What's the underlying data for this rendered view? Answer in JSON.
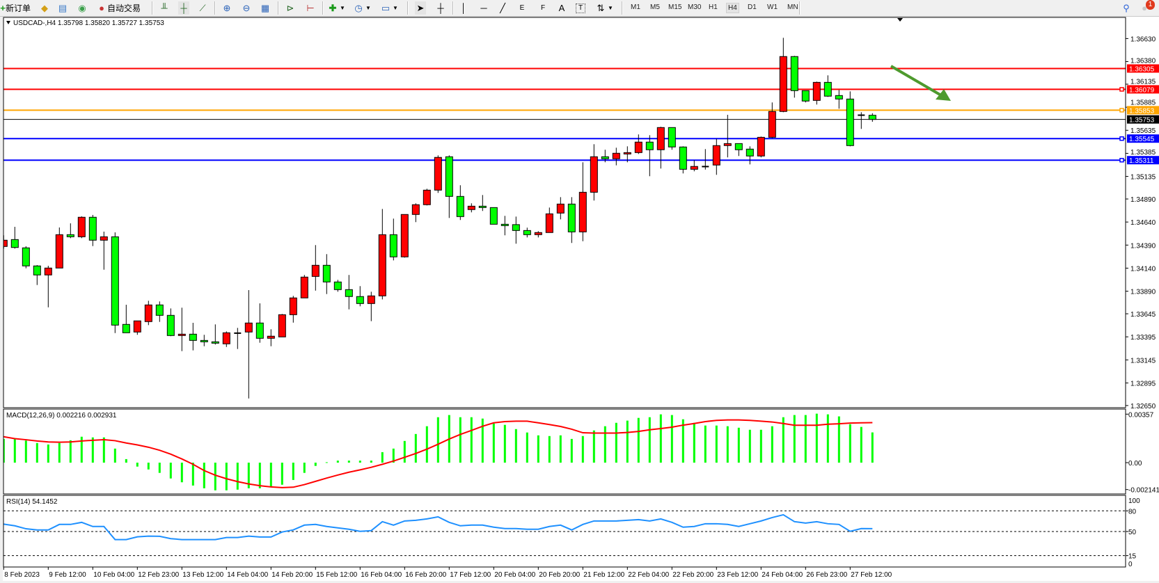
{
  "toolbar": {
    "new_order": "新订单",
    "auto_trading": "自动交易",
    "timeframes": [
      "M1",
      "M5",
      "M15",
      "M30",
      "H1",
      "H4",
      "D1",
      "W1",
      "MN"
    ],
    "active_timeframe": "H4",
    "notification_count": "1",
    "tool_labels": {
      "fib_expansion": "E",
      "fib_fan": "F",
      "text": "A",
      "text_label": "T"
    }
  },
  "chart": {
    "header": "USDCAD-,H4  1.35798 1.35820 1.35727 1.35753",
    "macd_label": "MACD(12,26,9) 0.002216 0.002931",
    "rsi_label": "RSI(14) 54.1452",
    "annotation_arrow_color": "#4e9a2e",
    "up_color": "#ff0000",
    "down_color": "#00ff00"
  },
  "chart_data": [
    {
      "type": "candlestick",
      "symbol": "USDCAD-",
      "timeframe": "H4",
      "ylim": [
        1.3265,
        1.3663
      ],
      "y_ticks": [
        "1.36630",
        "1.36380",
        "1.36135",
        "1.35885",
        "1.35635",
        "1.35385",
        "1.35135",
        "1.34890",
        "1.34640",
        "1.34390",
        "1.34140",
        "1.33890",
        "1.33645",
        "1.33395",
        "1.33145",
        "1.32895",
        "1.32650"
      ],
      "x_tick_labels": [
        "8 Feb 2023",
        "9 Feb 12:00",
        "10 Feb 04:00",
        "12 Feb 23:00",
        "13 Feb 12:00",
        "14 Feb 04:00",
        "14 Feb 20:00",
        "15 Feb 12:00",
        "16 Feb 04:00",
        "16 Feb 20:00",
        "17 Feb 12:00",
        "20 Feb 04:00",
        "20 Feb 20:00",
        "21 Feb 12:00",
        "22 Feb 04:00",
        "22 Feb 20:00",
        "23 Feb 12:00",
        "24 Feb 04:00",
        "26 Feb 23:00",
        "27 Feb 12:00"
      ],
      "ohlc": [
        [
          1.34375,
          1.34496,
          1.34352,
          1.34443
        ],
        [
          1.3445,
          1.34588,
          1.34352,
          1.34364
        ],
        [
          1.3436,
          1.34377,
          1.34138,
          1.34164
        ],
        [
          1.34164,
          1.34173,
          1.33957,
          1.34066
        ],
        [
          1.34066,
          1.34166,
          1.33715,
          1.34141
        ],
        [
          1.34141,
          1.34581,
          1.34141,
          1.34503
        ],
        [
          1.34503,
          1.34626,
          1.34465,
          1.3448
        ],
        [
          1.3448,
          1.34702,
          1.34465,
          1.34692
        ],
        [
          1.34692,
          1.34717,
          1.34379,
          1.34443
        ],
        [
          1.34443,
          1.34536,
          1.34123,
          1.3448
        ],
        [
          1.3448,
          1.34528,
          1.33436,
          1.33522
        ],
        [
          1.3353,
          1.33743,
          1.33439,
          1.33439
        ],
        [
          1.33447,
          1.33568,
          1.33417,
          1.33568
        ],
        [
          1.3356,
          1.33786,
          1.33522,
          1.33741
        ],
        [
          1.33741,
          1.33779,
          1.33557,
          1.33628
        ],
        [
          1.33628,
          1.33703,
          1.33402,
          1.33409
        ],
        [
          1.33409,
          1.33711,
          1.3324,
          1.33424
        ],
        [
          1.33424,
          1.33547,
          1.33248,
          1.33356
        ],
        [
          1.33356,
          1.33417,
          1.33293,
          1.33341
        ],
        [
          1.33341,
          1.3353,
          1.33311,
          1.33326
        ],
        [
          1.33319,
          1.33454,
          1.33285,
          1.33439
        ],
        [
          1.33436,
          1.33492,
          1.33263,
          1.33434
        ],
        [
          1.33447,
          1.33902,
          1.32727,
          1.33545
        ],
        [
          1.33545,
          1.33758,
          1.33331,
          1.33379
        ],
        [
          1.33379,
          1.33477,
          1.33293,
          1.33402
        ],
        [
          1.33394,
          1.33643,
          1.33394,
          1.33635
        ],
        [
          1.33635,
          1.33839,
          1.33549,
          1.33817
        ],
        [
          1.33817,
          1.34066,
          1.33817,
          1.34043
        ],
        [
          1.3405,
          1.3439,
          1.33896,
          1.34171
        ],
        [
          1.34171,
          1.34292,
          1.33859,
          1.3399
        ],
        [
          1.3399,
          1.34013,
          1.33884,
          1.33907
        ],
        [
          1.33907,
          1.34066,
          1.33693,
          1.33832
        ],
        [
          1.33832,
          1.33945,
          1.33726,
          1.33756
        ],
        [
          1.33756,
          1.33884,
          1.33565,
          1.33839
        ],
        [
          1.33839,
          1.34782,
          1.33801,
          1.34503
        ],
        [
          1.34503,
          1.34677,
          1.34224,
          1.34262
        ],
        [
          1.34262,
          1.34722,
          1.34254,
          1.34722
        ],
        [
          1.34722,
          1.34843,
          1.34639,
          1.34828
        ],
        [
          1.34828,
          1.35001,
          1.3482,
          1.34986
        ],
        [
          1.34986,
          1.35363,
          1.34956,
          1.35341
        ],
        [
          1.35348,
          1.35363,
          1.34684,
          1.34918
        ],
        [
          1.34918,
          1.35039,
          1.34662,
          1.34699
        ],
        [
          1.34775,
          1.34843,
          1.34745,
          1.34812
        ],
        [
          1.34812,
          1.34933,
          1.3476,
          1.34797
        ],
        [
          1.34797,
          1.34797,
          1.34616,
          1.34616
        ],
        [
          1.34616,
          1.34707,
          1.34496,
          1.34612
        ],
        [
          1.34612,
          1.34699,
          1.34405,
          1.34548
        ],
        [
          1.34548,
          1.34579,
          1.34473,
          1.34503
        ],
        [
          1.34503,
          1.34541,
          1.34473,
          1.34526
        ],
        [
          1.34526,
          1.34797,
          1.34526,
          1.34729
        ],
        [
          1.34737,
          1.3491,
          1.34669,
          1.34835
        ],
        [
          1.34835,
          1.3491,
          1.34413,
          1.34533
        ],
        [
          1.34533,
          1.35288,
          1.34432,
          1.34963
        ],
        [
          1.34963,
          1.35484,
          1.34873,
          1.35348
        ],
        [
          1.35348,
          1.35424,
          1.35288,
          1.35326
        ],
        [
          1.35326,
          1.35446,
          1.35255,
          1.35386
        ],
        [
          1.35378,
          1.35461,
          1.35288,
          1.35393
        ],
        [
          1.35393,
          1.3559,
          1.35378,
          1.35507
        ],
        [
          1.35507,
          1.35582,
          1.35137,
          1.35424
        ],
        [
          1.35424,
          1.35673,
          1.3522,
          1.35665
        ],
        [
          1.35665,
          1.35665,
          1.35424,
          1.35454
        ],
        [
          1.35454,
          1.35461,
          1.35167,
          1.35212
        ],
        [
          1.35212,
          1.3531,
          1.3519,
          1.35243
        ],
        [
          1.35243,
          1.35431,
          1.35209,
          1.3524
        ],
        [
          1.35258,
          1.35544,
          1.35152,
          1.35469
        ],
        [
          1.35469,
          1.35803,
          1.35341,
          1.35491
        ],
        [
          1.35491,
          1.35491,
          1.35356,
          1.35424
        ],
        [
          1.35431,
          1.35461,
          1.35265,
          1.35356
        ],
        [
          1.35356,
          1.35567,
          1.35341,
          1.35559
        ],
        [
          1.35559,
          1.35937,
          1.35551,
          1.35839
        ],
        [
          1.35839,
          1.36638,
          1.35831,
          1.36435
        ],
        [
          1.36435,
          1.36442,
          1.35989,
          1.36065
        ],
        [
          1.36065,
          1.36065,
          1.35937,
          1.35952
        ],
        [
          1.35959,
          1.36163,
          1.35914,
          1.36155
        ],
        [
          1.36155,
          1.36231,
          1.35997,
          1.36005
        ],
        [
          1.36012,
          1.36072,
          1.35869,
          1.35974
        ],
        [
          1.35974,
          1.36057,
          1.35461,
          1.35469
        ],
        [
          1.358,
          1.35831,
          1.3565,
          1.35798
        ],
        [
          1.35798,
          1.3582,
          1.35727,
          1.35753
        ]
      ],
      "current_price": {
        "value": "1.35753",
        "color": "#000000"
      },
      "horizontal_levels": [
        {
          "value": "1.36305",
          "color": "#ff0000"
        },
        {
          "value": "1.36079",
          "color": "#ff0000"
        },
        {
          "value": "1.35853",
          "color": "#ffa500"
        },
        {
          "value": "1.35545",
          "color": "#0000ff"
        },
        {
          "value": "1.35311",
          "color": "#0000ff"
        }
      ],
      "annotation": "down-arrow"
    },
    {
      "type": "bar",
      "indicator": "MACD(12,26,9)",
      "ylim": [
        -0.002141,
        0.00357
      ],
      "y_ticks": [
        "0.00357",
        "0.00",
        "-0.002141"
      ],
      "series": [
        {
          "name": "MACD",
          "type": "bar",
          "color": "#00ff00",
          "values": [
            0.00174,
            0.00174,
            0.00162,
            0.00144,
            0.00133,
            0.00144,
            0.00164,
            0.0019,
            0.00185,
            0.00185,
            0.00103,
            0.00026,
            -0.00029,
            -0.0005,
            -0.00075,
            -0.00116,
            -0.00144,
            -0.00168,
            -0.00188,
            -0.00203,
            -0.00203,
            -0.00198,
            -0.00188,
            -0.00188,
            -0.00178,
            -0.00162,
            -0.00127,
            -0.00075,
            -0.00024,
            3e-05,
            0.00015,
            0.00015,
            0.00015,
            0.00015,
            0.00077,
            0.00103,
            0.00159,
            0.0021,
            0.00267,
            0.00333,
            0.00349,
            0.00333,
            0.00333,
            0.00323,
            0.00287,
            0.00277,
            0.00246,
            0.00221,
            0.002,
            0.00195,
            0.002,
            0.00174,
            0.00195,
            0.00236,
            0.00267,
            0.00292,
            0.00308,
            0.00328,
            0.00333,
            0.00354,
            0.00349,
            0.00318,
            0.00292,
            0.00272,
            0.00272,
            0.00267,
            0.00256,
            0.00241,
            0.00241,
            0.00267,
            0.00333,
            0.00349,
            0.00349,
            0.00359,
            0.00354,
            0.00339,
            0.00282,
            0.00262,
            0.002216
          ]
        },
        {
          "name": "Signal",
          "type": "line",
          "color": "#ff0000",
          "values": [
            0.0019,
            0.00176,
            0.00168,
            0.00159,
            0.00152,
            0.0015,
            0.00152,
            0.00159,
            0.00164,
            0.00168,
            0.00161,
            0.00144,
            0.0013,
            0.00113,
            0.00091,
            0.00062,
            0.00027,
            -0.00012,
            -0.00058,
            -0.00092,
            -0.00118,
            -0.00139,
            -0.00156,
            -0.00169,
            -0.00178,
            -0.00183,
            -0.0018,
            -0.00161,
            -0.00137,
            -0.00113,
            -0.00091,
            -0.0007,
            -0.00053,
            -0.00034,
            -0.00012,
            0.00012,
            0.00039,
            0.00067,
            0.00099,
            0.00135,
            0.00173,
            0.00207,
            0.00236,
            0.00267,
            0.00292,
            0.00301,
            0.00304,
            0.00304,
            0.00292,
            0.00279,
            0.00265,
            0.00245,
            0.00219,
            0.00217,
            0.00217,
            0.00217,
            0.00221,
            0.00229,
            0.00241,
            0.0025,
            0.0026,
            0.00275,
            0.00287,
            0.00301,
            0.0031,
            0.00313,
            0.00313,
            0.0031,
            0.00304,
            0.00298,
            0.00287,
            0.00274,
            0.00274,
            0.00274,
            0.00282,
            0.00285,
            0.0029,
            0.00292,
            0.002931
          ]
        }
      ]
    },
    {
      "type": "line",
      "indicator": "RSI(14)",
      "ylim": [
        0,
        100
      ],
      "y_ticks": [
        "100",
        "80",
        "50",
        "15",
        "0"
      ],
      "levels": [
        80,
        50,
        15
      ],
      "series": [
        {
          "name": "RSI",
          "color": "#1e90ff",
          "values": [
            60.7,
            58.3,
            54,
            52.3,
            52.3,
            60.3,
            60.3,
            63.3,
            57.3,
            57.3,
            38.3,
            38.3,
            42.3,
            43.3,
            43,
            39.7,
            38.3,
            38.3,
            38.3,
            38.3,
            41.3,
            41.3,
            43.3,
            42,
            42,
            49.3,
            52.3,
            59.3,
            60.3,
            57.3,
            55.3,
            53.3,
            50.3,
            51.3,
            64.3,
            59.3,
            65.3,
            66.3,
            68.3,
            71.3,
            63.3,
            58.3,
            59.3,
            59.3,
            56.3,
            54.3,
            54.3,
            53.3,
            53.3,
            57.3,
            59.3,
            52.3,
            60.3,
            65.3,
            65.3,
            65.3,
            66.3,
            67.3,
            65.3,
            68.3,
            63.3,
            56.3,
            57.3,
            61.3,
            61.3,
            60.3,
            57.3,
            61.3,
            65.3,
            70.3,
            74.3,
            64.3,
            62.3,
            64.3,
            61.3,
            60.3,
            50.3,
            54.3,
            54.1452
          ]
        }
      ]
    }
  ]
}
